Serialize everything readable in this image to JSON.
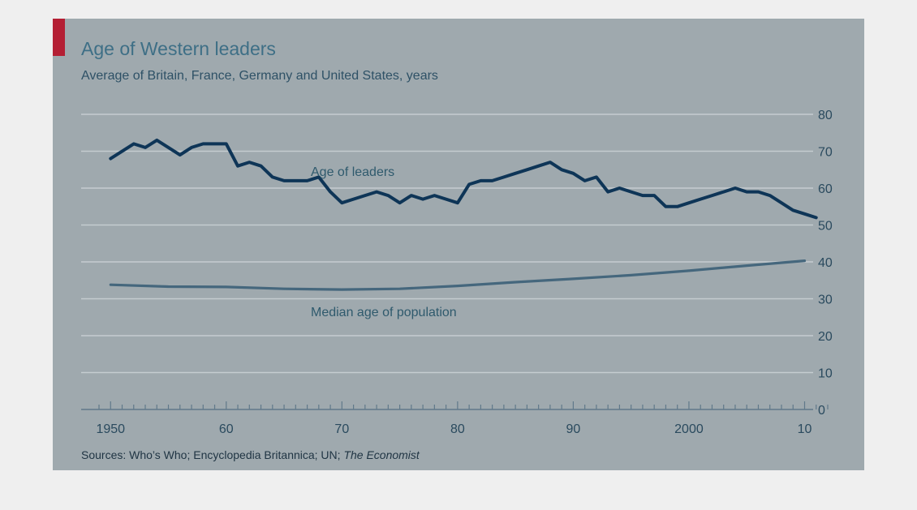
{
  "colors": {
    "background": "#9fa9ae",
    "page": "#efefef",
    "accent_tab": "#b41f34",
    "leaders_line": "#0e3557",
    "median_line": "#45677d",
    "gridline": "#c5ccd0"
  },
  "chart_data": {
    "type": "line",
    "title": "Age of Western leaders",
    "subtitle": "Average of Britain, France, Germany and United States, years",
    "xlabel": "",
    "ylabel": "",
    "xlim": [
      1949,
      2012
    ],
    "ylim": [
      0,
      80
    ],
    "x_ticks": [
      {
        "value": 1950,
        "label": "1950"
      },
      {
        "value": 1960,
        "label": "60"
      },
      {
        "value": 1970,
        "label": "70"
      },
      {
        "value": 1980,
        "label": "80"
      },
      {
        "value": 1990,
        "label": "90"
      },
      {
        "value": 2000,
        "label": "2000"
      },
      {
        "value": 2010,
        "label": "10"
      }
    ],
    "y_ticks": [
      0,
      10,
      20,
      30,
      40,
      50,
      60,
      70,
      80
    ],
    "y_axis_position": "right",
    "grid": true,
    "series": [
      {
        "name": "Age of leaders",
        "color": "#0e3557",
        "x": [
          1950,
          1952,
          1953,
          1954,
          1955,
          1956,
          1957,
          1958,
          1959,
          1960,
          1961,
          1962,
          1963,
          1964,
          1965,
          1966,
          1967,
          1968,
          1969,
          1970,
          1971,
          1972,
          1973,
          1974,
          1975,
          1976,
          1977,
          1978,
          1979,
          1980,
          1981,
          1982,
          1983,
          1984,
          1985,
          1986,
          1987,
          1988,
          1989,
          1990,
          1991,
          1992,
          1993,
          1994,
          1995,
          1996,
          1997,
          1998,
          1999,
          2000,
          2001,
          2002,
          2003,
          2004,
          2005,
          2006,
          2007,
          2008,
          2009,
          2010,
          2011
        ],
        "values": [
          68,
          72,
          71,
          73,
          71,
          69,
          71,
          72,
          72,
          72,
          66,
          67,
          66,
          63,
          62,
          62,
          62,
          63,
          59,
          56,
          57,
          58,
          59,
          58,
          56,
          58,
          57,
          58,
          57,
          56,
          61,
          62,
          62,
          63,
          64,
          65,
          66,
          67,
          65,
          64,
          62,
          63,
          59,
          60,
          59,
          58,
          58,
          55,
          55,
          56,
          57,
          58,
          59,
          60,
          59,
          59,
          58,
          56,
          54,
          53,
          52
        ]
      },
      {
        "name": "Median age of population",
        "color": "#45677d",
        "x": [
          1950,
          1955,
          1960,
          1965,
          1970,
          1975,
          1980,
          1985,
          1990,
          1995,
          2000,
          2005,
          2010
        ],
        "values": [
          33.8,
          33.3,
          33.2,
          32.7,
          32.5,
          32.7,
          33.5,
          34.5,
          35.4,
          36.4,
          37.6,
          39.0,
          40.3
        ]
      }
    ],
    "annotations": [
      {
        "text": "Age of leaders",
        "series": 0
      },
      {
        "text": "Median age of population",
        "series": 1
      }
    ],
    "source": {
      "prefix": "Sources: Who’s Who; Encyclopedia Britannica; UN; ",
      "italic": "The Economist"
    }
  }
}
